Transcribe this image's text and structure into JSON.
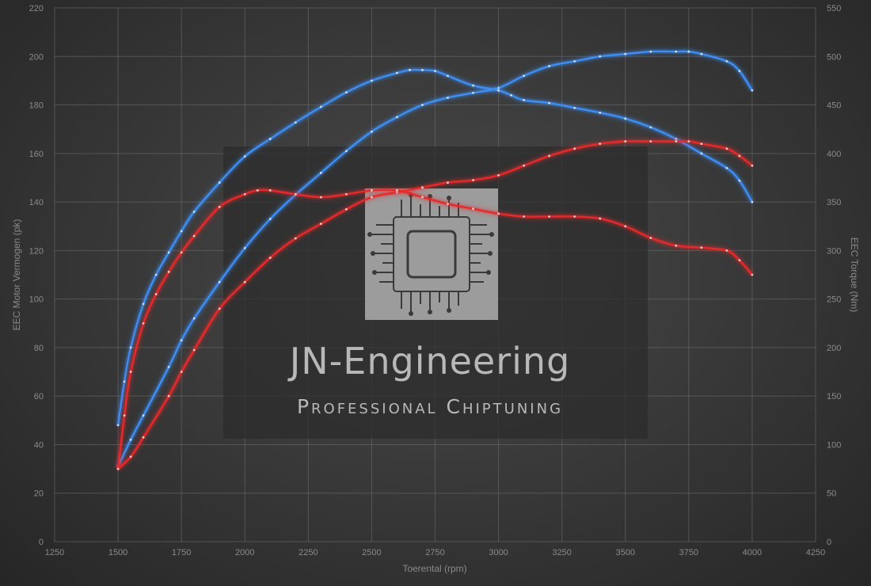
{
  "chart_data": {
    "type": "line",
    "xlabel": "Toerental (rpm)",
    "ylabel_left": "EEC Motor Vermogen (pk)",
    "ylabel_right": "EEC Torque (Nm)",
    "xlim": [
      1250,
      4250
    ],
    "ylim_left": [
      0,
      220
    ],
    "ylim_right": [
      0,
      550
    ],
    "x_ticks": [
      1250,
      1500,
      1750,
      2000,
      2250,
      2500,
      2750,
      3000,
      3250,
      3500,
      3750,
      4000,
      4250
    ],
    "y_ticks_left": [
      0,
      20,
      40,
      60,
      80,
      100,
      120,
      140,
      160,
      180,
      200,
      220
    ],
    "y_ticks_right": [
      0,
      50,
      100,
      150,
      200,
      250,
      300,
      350,
      400,
      450,
      500,
      550
    ],
    "grid": true,
    "series": [
      {
        "axis": "left",
        "color": "#3d8ff5",
        "x": [
          1500,
          1550,
          1600,
          1700,
          1750,
          1800,
          1900,
          2000,
          2100,
          2200,
          2300,
          2400,
          2500,
          2600,
          2700,
          2800,
          2900,
          3000,
          3100,
          3200,
          3300,
          3400,
          3500,
          3600,
          3700,
          3750,
          3800,
          3900,
          3950,
          4000
        ],
        "y": [
          31,
          42,
          52,
          72,
          83,
          92,
          107,
          121,
          133,
          143,
          152,
          161,
          169,
          175,
          180,
          183,
          185,
          187,
          192,
          196,
          198,
          200,
          201,
          202,
          202,
          202,
          201,
          198,
          194,
          186
        ]
      },
      {
        "axis": "right",
        "color": "#3d8ff5",
        "x": [
          1500,
          1525,
          1550,
          1600,
          1650,
          1700,
          1750,
          1800,
          1900,
          2000,
          2100,
          2200,
          2300,
          2400,
          2500,
          2600,
          2650,
          2700,
          2750,
          2800,
          2900,
          3000,
          3050,
          3100,
          3200,
          3300,
          3400,
          3500,
          3600,
          3700,
          3800,
          3900,
          3950,
          4000
        ],
        "y": [
          120,
          165,
          200,
          245,
          275,
          298,
          320,
          340,
          370,
          397,
          415,
          432,
          448,
          463,
          475,
          483,
          486,
          486,
          485,
          480,
          470,
          465,
          460,
          455,
          452,
          447,
          442,
          436,
          427,
          415,
          400,
          385,
          372,
          350
        ]
      },
      {
        "axis": "left",
        "color": "#e8292b",
        "x": [
          1500,
          1550,
          1600,
          1700,
          1750,
          1800,
          1900,
          2000,
          2100,
          2200,
          2300,
          2400,
          2500,
          2600,
          2700,
          2800,
          2900,
          3000,
          3100,
          3200,
          3300,
          3400,
          3500,
          3600,
          3700,
          3750,
          3800,
          3900,
          3950,
          4000
        ],
        "y": [
          30,
          35,
          43,
          60,
          70,
          79,
          96,
          107,
          117,
          125,
          131,
          137,
          142,
          144,
          146,
          148,
          149,
          151,
          155,
          159,
          162,
          164,
          165,
          165,
          165,
          165,
          164,
          162,
          159,
          155
        ]
      },
      {
        "axis": "right",
        "color": "#e8292b",
        "x": [
          1500,
          1525,
          1550,
          1600,
          1650,
          1700,
          1750,
          1800,
          1900,
          2000,
          2050,
          2100,
          2200,
          2300,
          2400,
          2500,
          2600,
          2700,
          2800,
          2900,
          3000,
          3100,
          3200,
          3300,
          3400,
          3500,
          3600,
          3700,
          3800,
          3900,
          3950,
          4000
        ],
        "y": [
          75,
          130,
          175,
          225,
          255,
          278,
          298,
          315,
          345,
          358,
          362,
          362,
          358,
          355,
          358,
          362,
          362,
          355,
          348,
          343,
          338,
          335,
          335,
          335,
          333,
          325,
          313,
          305,
          303,
          300,
          290,
          275
        ]
      }
    ]
  },
  "watermark": {
    "title": "JN-Engineering",
    "subtitle": "Professional Chiptuning"
  }
}
